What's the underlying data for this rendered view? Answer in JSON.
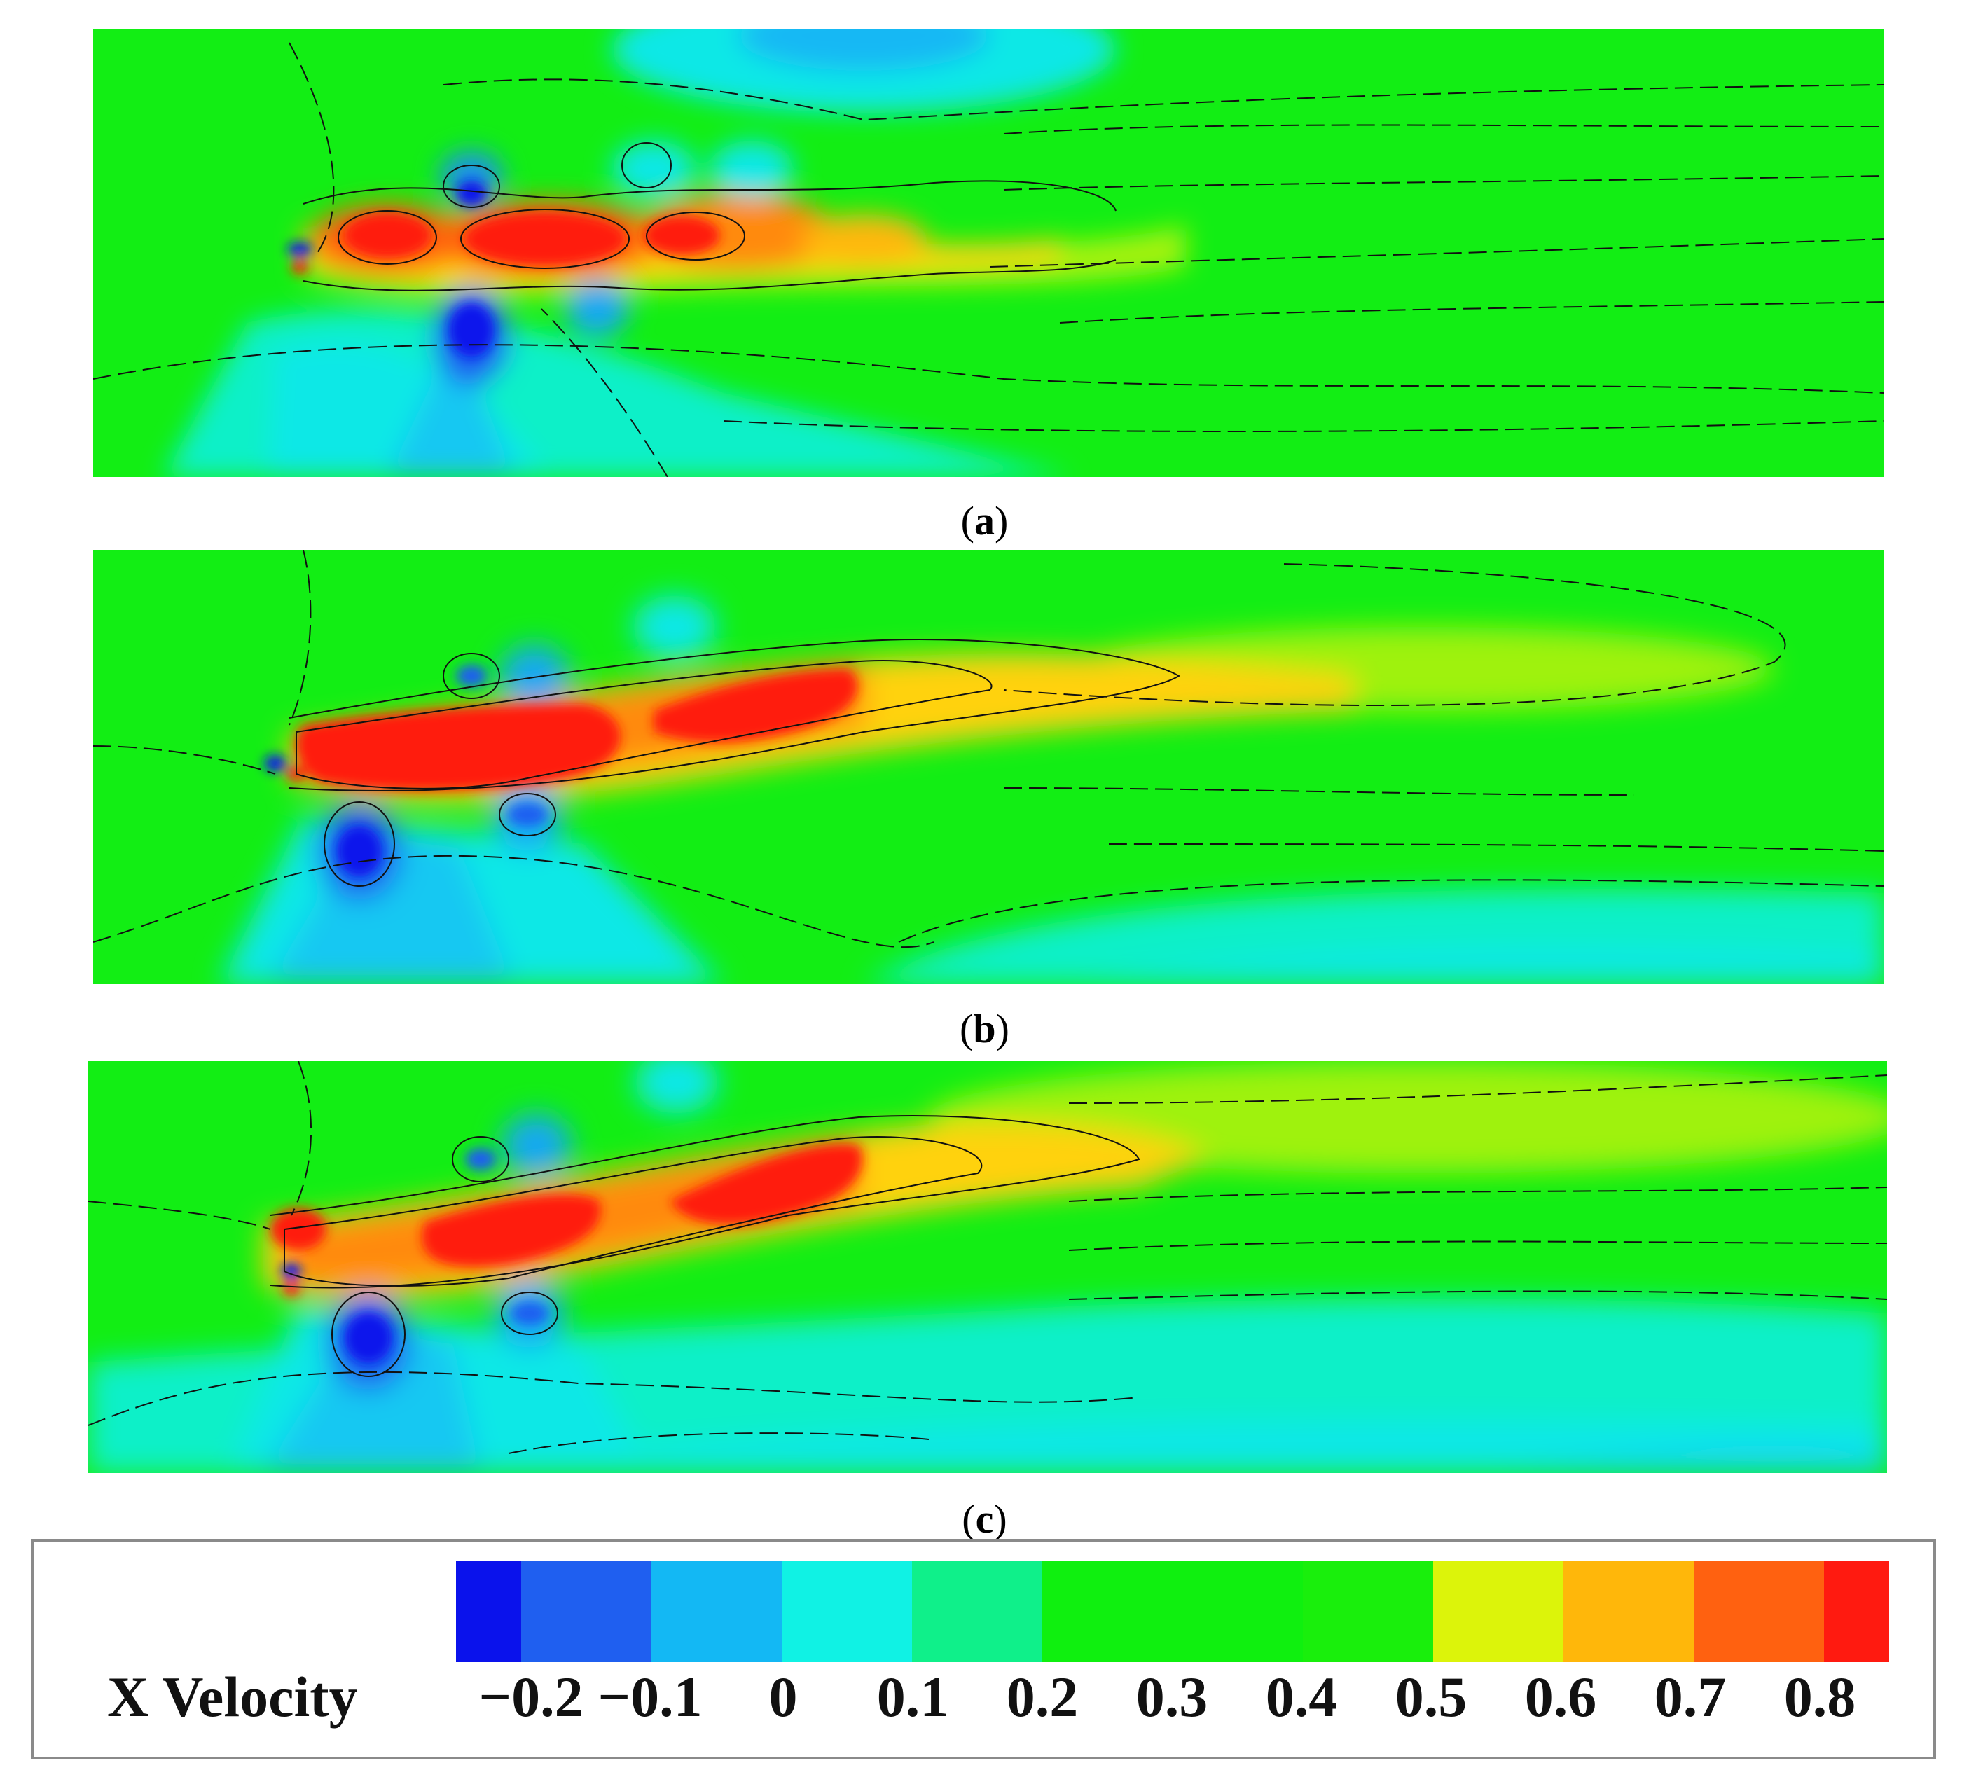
{
  "panels": [
    {
      "label": "a"
    },
    {
      "label": "b"
    },
    {
      "label": "c"
    }
  ],
  "legend": {
    "title": "X Velocity",
    "ticks": [
      "−0.2",
      "−0.1",
      "0",
      "0.1",
      "0.2",
      "0.3",
      "0.4",
      "0.5",
      "0.6",
      "0.7",
      "0.8"
    ],
    "colors": [
      "#0a12ec",
      "#1f5ff0",
      "#13b8f4",
      "#10f2e4",
      "#0ff08a",
      "#0ff00f",
      "#0ff00f",
      "#19ef0c",
      "#dcf40a",
      "#ffb70a",
      "#ff6110",
      "#ff1a10"
    ]
  },
  "colors": {
    "background_flow": "#12ee14",
    "wake_core": "#ff1a10",
    "vortex": "#0a12ec"
  }
}
